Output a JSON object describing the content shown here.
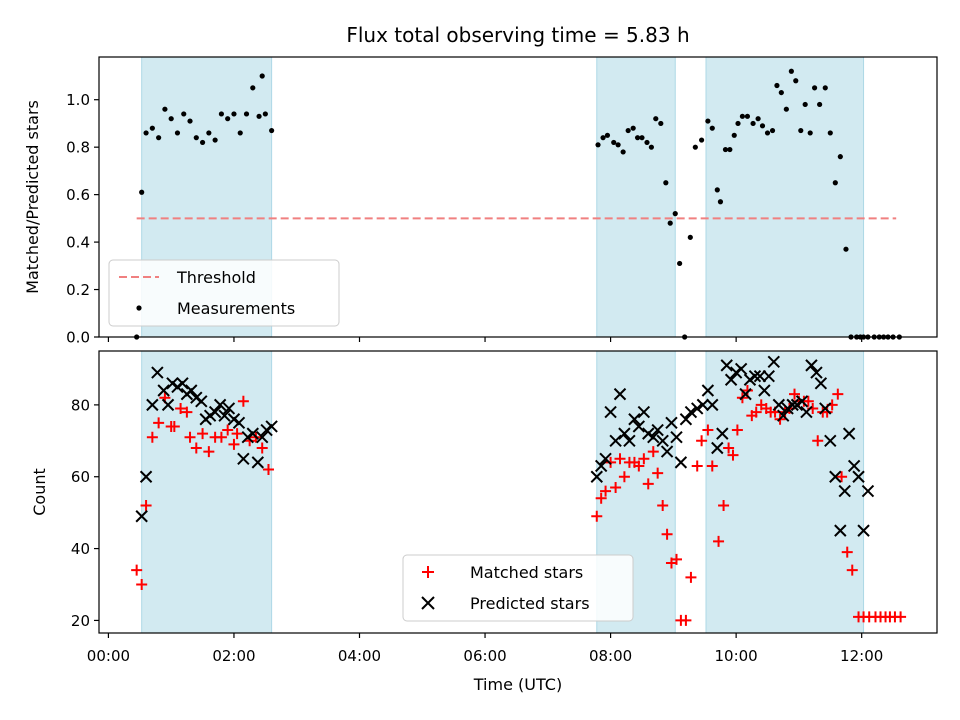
{
  "figure": {
    "title": "Flux total observing time = 5.83 h",
    "x_label": "Time (UTC)"
  },
  "colors": {
    "threshold": "#f08080",
    "measurement": "#000000",
    "matched": "#ff0000",
    "predicted": "#000000",
    "shade": "#add8e6"
  },
  "chart_data": [
    {
      "type": "scatter",
      "panel": "top",
      "ylabel": "Matched/Predicted stars",
      "xlim": [
        -0.15,
        13.2
      ],
      "ylim": [
        0,
        1.18
      ],
      "x_unit": "hours (UTC)",
      "x_ticks": [
        0,
        2,
        4,
        6,
        8,
        10,
        12
      ],
      "x_tick_labels": [],
      "y_ticks": [
        0.0,
        0.2,
        0.4,
        0.6,
        0.8,
        1.0
      ],
      "y_tick_labels": [
        "0.0",
        "0.2",
        "0.4",
        "0.6",
        "0.8",
        "1.0"
      ],
      "shaded_intervals": [
        [
          0.53,
          2.6
        ],
        [
          7.78,
          9.03
        ],
        [
          9.52,
          12.03
        ]
      ],
      "threshold": {
        "name": "Threshold",
        "y": 0.5,
        "x": [
          0.45,
          12.55
        ]
      },
      "legend": {
        "location": "lower-left",
        "entries": [
          "Threshold",
          "Measurements"
        ]
      },
      "series": [
        {
          "name": "Measurements",
          "marker": "dot",
          "x": [
            0.45,
            0.53,
            0.6,
            0.7,
            0.8,
            0.9,
            1.0,
            1.1,
            1.2,
            1.3,
            1.4,
            1.5,
            1.6,
            1.7,
            1.8,
            1.9,
            2.0,
            2.1,
            2.2,
            2.3,
            2.4,
            2.45,
            2.5,
            2.6,
            7.8,
            7.88,
            7.95,
            8.05,
            8.12,
            8.2,
            8.28,
            8.36,
            8.43,
            8.5,
            8.58,
            8.65,
            8.72,
            8.8,
            8.88,
            8.95,
            9.03,
            9.1,
            9.18,
            9.27,
            9.35,
            9.45,
            9.55,
            9.62,
            9.7,
            9.75,
            9.83,
            9.9,
            9.97,
            10.03,
            10.1,
            10.18,
            10.27,
            10.35,
            10.42,
            10.5,
            10.58,
            10.65,
            10.72,
            10.8,
            10.88,
            10.95,
            11.03,
            11.1,
            11.18,
            11.25,
            11.33,
            11.42,
            11.5,
            11.58,
            11.66,
            11.75,
            11.83,
            11.92,
            11.98,
            12.03,
            12.1,
            12.2,
            12.28,
            12.35,
            12.42,
            12.5,
            12.6
          ],
          "y": [
            0.0,
            0.61,
            0.86,
            0.88,
            0.84,
            0.96,
            0.92,
            0.86,
            0.94,
            0.91,
            0.84,
            0.82,
            0.86,
            0.83,
            0.94,
            0.92,
            0.94,
            0.86,
            0.94,
            1.05,
            0.93,
            1.1,
            0.94,
            0.87,
            0.81,
            0.84,
            0.85,
            0.82,
            0.81,
            0.78,
            0.87,
            0.88,
            0.84,
            0.84,
            0.82,
            0.8,
            0.92,
            0.9,
            0.65,
            0.48,
            0.52,
            0.31,
            0.0,
            0.42,
            0.8,
            0.83,
            0.91,
            0.88,
            0.62,
            0.57,
            0.79,
            0.79,
            0.85,
            0.9,
            0.93,
            0.93,
            0.9,
            0.92,
            0.89,
            0.86,
            0.87,
            1.06,
            1.03,
            0.96,
            1.12,
            1.08,
            0.87,
            0.98,
            0.86,
            1.05,
            0.98,
            1.05,
            0.86,
            0.65,
            0.76,
            0.37,
            0.0,
            0.0,
            0.0,
            0.0,
            0.0,
            0.0,
            0.0,
            0.0,
            0.0,
            0.0,
            0.0
          ]
        }
      ]
    },
    {
      "type": "scatter",
      "panel": "bottom",
      "ylabel": "Count",
      "xlim": [
        -0.15,
        13.2
      ],
      "ylim": [
        16.5,
        95
      ],
      "x_unit": "hours (UTC)",
      "x_ticks": [
        0,
        2,
        4,
        6,
        8,
        10,
        12
      ],
      "x_tick_labels": [
        "00:00",
        "02:00",
        "04:00",
        "06:00",
        "08:00",
        "10:00",
        "12:00"
      ],
      "y_ticks": [
        20,
        40,
        60,
        80
      ],
      "y_tick_labels": [
        "20",
        "40",
        "60",
        "80"
      ],
      "shaded_intervals": [
        [
          0.53,
          2.6
        ],
        [
          7.78,
          9.03
        ],
        [
          9.52,
          12.03
        ]
      ],
      "legend": {
        "location": "lower-center",
        "entries": [
          "Matched stars",
          "Predicted stars"
        ]
      },
      "series": [
        {
          "name": "Matched stars",
          "marker": "plus",
          "x": [
            0.45,
            0.53,
            0.6,
            0.7,
            0.8,
            0.9,
            1.0,
            1.05,
            1.15,
            1.25,
            1.3,
            1.4,
            1.5,
            1.6,
            1.7,
            1.8,
            1.9,
            2.0,
            2.05,
            2.15,
            2.25,
            2.35,
            2.45,
            2.55,
            7.78,
            7.85,
            7.92,
            8.0,
            8.08,
            8.15,
            8.22,
            8.3,
            8.38,
            8.45,
            8.53,
            8.6,
            8.68,
            8.75,
            8.83,
            8.9,
            8.97,
            9.05,
            9.12,
            9.2,
            9.28,
            9.38,
            9.45,
            9.55,
            9.62,
            9.72,
            9.8,
            9.88,
            9.95,
            10.02,
            10.1,
            10.18,
            10.25,
            10.32,
            10.4,
            10.48,
            10.55,
            10.62,
            10.7,
            10.78,
            10.85,
            10.93,
            11.0,
            11.08,
            11.15,
            11.22,
            11.3,
            11.38,
            11.45,
            11.53,
            11.62,
            11.68,
            11.77,
            11.85,
            11.95,
            12.03,
            12.12,
            12.22,
            12.3,
            12.38,
            12.45,
            12.53,
            12.62
          ],
          "y": [
            34,
            30,
            52,
            71,
            75,
            82,
            74,
            74,
            79,
            78,
            71,
            68,
            72,
            67,
            71,
            71,
            73,
            69,
            72,
            81,
            70,
            71,
            68,
            62,
            49,
            54,
            56,
            64,
            57,
            65,
            60,
            64,
            64,
            63,
            65,
            58,
            67,
            61,
            52,
            44,
            36,
            37,
            20,
            20,
            32,
            63,
            70,
            73,
            63,
            42,
            52,
            68,
            66,
            73,
            82,
            84,
            77,
            78,
            80,
            79,
            78,
            78,
            76,
            78,
            79,
            83,
            81,
            81,
            81,
            79,
            70,
            78,
            78,
            80,
            83,
            60,
            39,
            34,
            21,
            21,
            21,
            21,
            21,
            21,
            21,
            21,
            21
          ]
        },
        {
          "name": "Predicted stars",
          "marker": "x",
          "x": [
            0.53,
            0.6,
            0.7,
            0.78,
            0.88,
            0.95,
            1.02,
            1.1,
            1.18,
            1.25,
            1.32,
            1.4,
            1.48,
            1.55,
            1.62,
            1.7,
            1.78,
            1.85,
            1.92,
            2.0,
            2.08,
            2.15,
            2.22,
            2.3,
            2.38,
            2.45,
            2.52,
            2.6,
            7.78,
            7.85,
            7.92,
            8.0,
            8.08,
            8.15,
            8.22,
            8.3,
            8.38,
            8.45,
            8.53,
            8.6,
            8.68,
            8.75,
            8.83,
            8.9,
            8.97,
            9.05,
            9.12,
            9.2,
            9.28,
            9.38,
            9.47,
            9.55,
            9.62,
            9.7,
            9.78,
            9.85,
            9.92,
            10.0,
            10.08,
            10.15,
            10.22,
            10.3,
            10.38,
            10.45,
            10.52,
            10.6,
            10.68,
            10.75,
            10.82,
            10.9,
            10.97,
            11.05,
            11.12,
            11.2,
            11.28,
            11.35,
            11.42,
            11.5,
            11.58,
            11.66,
            11.73,
            11.8,
            11.88,
            11.95,
            12.03,
            12.1
          ],
          "y": [
            49,
            60,
            80,
            89,
            84,
            80,
            86,
            85,
            86,
            83,
            84,
            82,
            81,
            76,
            77,
            78,
            80,
            77,
            79,
            76,
            75,
            65,
            71,
            72,
            64,
            71,
            73,
            74,
            60,
            63,
            65,
            78,
            70,
            83,
            72,
            70,
            76,
            74,
            78,
            72,
            71,
            73,
            70,
            67,
            75,
            71,
            64,
            76,
            78,
            79,
            80,
            84,
            80,
            68,
            72,
            91,
            87,
            89,
            90,
            83,
            87,
            88,
            88,
            84,
            88,
            92,
            80,
            77,
            79,
            80,
            80,
            81,
            78,
            91,
            89,
            86,
            79,
            70,
            60,
            45,
            56,
            72,
            63,
            60,
            45,
            56
          ]
        }
      ]
    }
  ]
}
